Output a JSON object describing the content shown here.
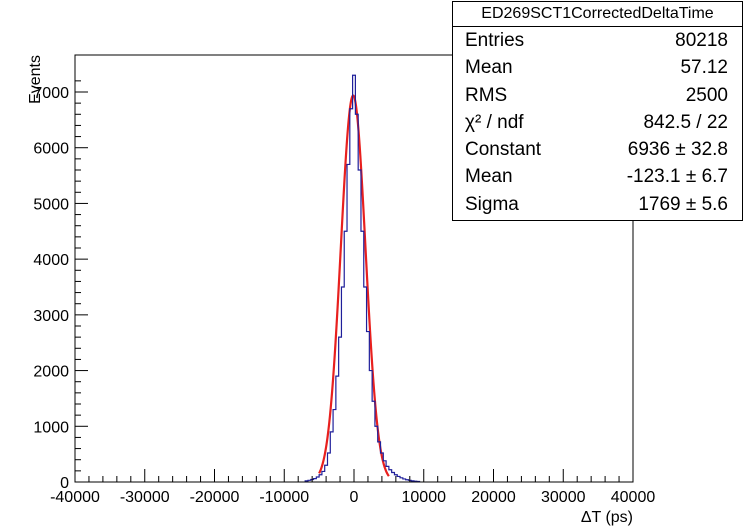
{
  "chart_data": {
    "type": "histogram",
    "xlabel": "ΔT (ps)",
    "ylabel": "Events",
    "xlim": [
      -40000,
      40000
    ],
    "ylim": [
      0,
      7300
    ],
    "xticks": [
      "-40000",
      "-30000",
      "-20000",
      "-10000",
      "0",
      "10000",
      "20000",
      "30000",
      "40000"
    ],
    "yticks": [
      "0",
      "1000",
      "2000",
      "3000",
      "4000",
      "5000",
      "6000",
      "7000"
    ],
    "bin_width": 400,
    "bins": [
      {
        "x": -6800,
        "y": 20
      },
      {
        "x": -6400,
        "y": 30
      },
      {
        "x": -6000,
        "y": 45
      },
      {
        "x": -5600,
        "y": 60
      },
      {
        "x": -5200,
        "y": 90
      },
      {
        "x": -4800,
        "y": 130
      },
      {
        "x": -4400,
        "y": 190
      },
      {
        "x": -4000,
        "y": 300
      },
      {
        "x": -3600,
        "y": 520
      },
      {
        "x": -3200,
        "y": 900
      },
      {
        "x": -2800,
        "y": 1300
      },
      {
        "x": -2400,
        "y": 1900
      },
      {
        "x": -2000,
        "y": 2600
      },
      {
        "x": -1600,
        "y": 3500
      },
      {
        "x": -1200,
        "y": 4500
      },
      {
        "x": -800,
        "y": 5700
      },
      {
        "x": -400,
        "y": 6700
      },
      {
        "x": 0,
        "y": 7300
      },
      {
        "x": 400,
        "y": 6600
      },
      {
        "x": 800,
        "y": 5600
      },
      {
        "x": 1200,
        "y": 4500
      },
      {
        "x": 1600,
        "y": 3500
      },
      {
        "x": 2000,
        "y": 2700
      },
      {
        "x": 2400,
        "y": 2000
      },
      {
        "x": 2800,
        "y": 1450
      },
      {
        "x": 3200,
        "y": 1000
      },
      {
        "x": 3600,
        "y": 720
      },
      {
        "x": 4000,
        "y": 520
      },
      {
        "x": 4400,
        "y": 380
      },
      {
        "x": 4800,
        "y": 280
      },
      {
        "x": 5200,
        "y": 220
      },
      {
        "x": 5600,
        "y": 170
      },
      {
        "x": 6000,
        "y": 130
      },
      {
        "x": 6400,
        "y": 100
      },
      {
        "x": 6800,
        "y": 75
      },
      {
        "x": 7200,
        "y": 55
      },
      {
        "x": 7600,
        "y": 40
      },
      {
        "x": 8000,
        "y": 30
      },
      {
        "x": 8400,
        "y": 20
      },
      {
        "x": 8800,
        "y": 15
      },
      {
        "x": 9200,
        "y": 10
      }
    ],
    "fit": {
      "function": "gaus",
      "constant": 6936,
      "mean": -123.1,
      "sigma": 1769,
      "range": [
        -5000,
        5000
      ]
    },
    "colors": {
      "histogram": "#1f1f9a",
      "fit": "#e8201e",
      "axis": "#000000"
    },
    "stats_box": {
      "title": "ED269SCT1CorrectedDeltaTime",
      "rows": [
        {
          "label": "Entries",
          "value": "80218"
        },
        {
          "label": "Mean",
          "value": "57.12"
        },
        {
          "label": "RMS",
          "value": "2500"
        },
        {
          "label": "χ² / ndf",
          "value": "842.5 / 22"
        },
        {
          "label": "Constant",
          "value": "6936 ± 32.8"
        },
        {
          "label": "Mean",
          "value": "-123.1 ± 6.7"
        },
        {
          "label": "Sigma",
          "value": "1769 ± 5.6"
        }
      ]
    }
  }
}
